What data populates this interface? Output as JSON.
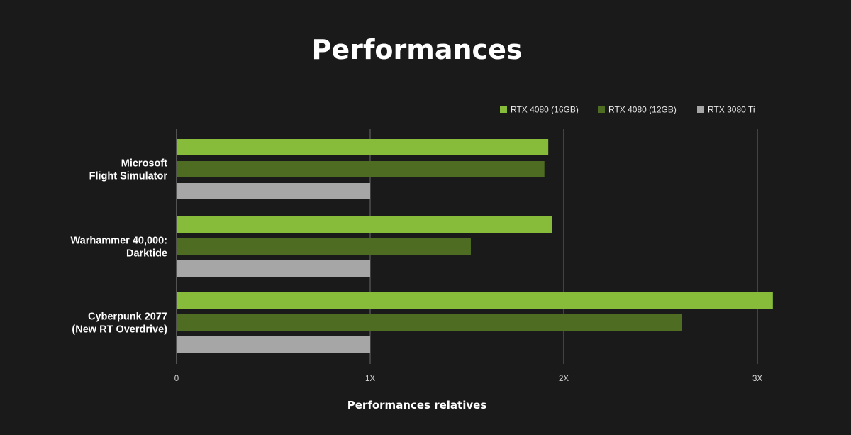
{
  "chart_data": {
    "type": "bar",
    "orientation": "horizontal",
    "title": "Performances",
    "xlabel": "Performances relatives",
    "ylabel": "",
    "categories": [
      [
        "Microsoft",
        "Flight Simulator"
      ],
      [
        "Warhammer 40,000:",
        "Darktide"
      ],
      [
        "Cyberpunk 2077",
        "(New RT Overdrive)"
      ]
    ],
    "series": [
      {
        "name": "RTX 4080 (16GB)",
        "color": "#86bc3a",
        "values": [
          1.92,
          1.94,
          3.08
        ]
      },
      {
        "name": "RTX 4080 (12GB)",
        "color": "#4f6d22",
        "values": [
          1.9,
          1.52,
          2.61
        ]
      },
      {
        "name": "RTX 3080 Ti",
        "color": "#a6a6a6",
        "values": [
          1.0,
          1.0,
          1.0
        ]
      }
    ],
    "xlim": [
      0,
      3.1
    ],
    "xticks": [
      0,
      1,
      2,
      3
    ],
    "xtick_labels": [
      "0",
      "1X",
      "2X",
      "3X"
    ],
    "grid": true,
    "legend_position": "top-right"
  }
}
